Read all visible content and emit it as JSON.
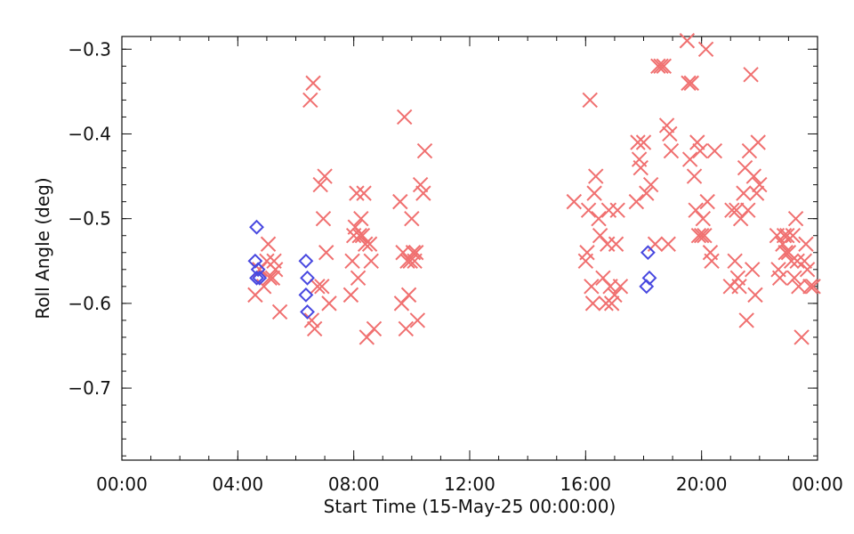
{
  "chart_data": {
    "type": "scatter",
    "title": "",
    "xlabel": "Start Time (15-May-25 00:00:00)",
    "ylabel": "Roll Angle (deg)",
    "x_unit": "hours",
    "xlim": [
      0,
      24
    ],
    "ylim": [
      -0.785,
      -0.285
    ],
    "x_ticks": [
      {
        "value": 0,
        "label": "00:00"
      },
      {
        "value": 4,
        "label": "04:00"
      },
      {
        "value": 8,
        "label": "08:00"
      },
      {
        "value": 12,
        "label": "12:00"
      },
      {
        "value": 16,
        "label": "16:00"
      },
      {
        "value": 20,
        "label": "20:00"
      },
      {
        "value": 24,
        "label": "00:00"
      }
    ],
    "y_ticks": [
      {
        "value": -0.3,
        "label": "−0.3"
      },
      {
        "value": -0.4,
        "label": "−0.4"
      },
      {
        "value": -0.5,
        "label": "−0.5"
      },
      {
        "value": -0.6,
        "label": "−0.6"
      },
      {
        "value": -0.7,
        "label": "−0.7"
      }
    ],
    "x_minor_step": 1,
    "y_minor_step": 0.02,
    "grid": false,
    "series": [
      {
        "marker": "x",
        "color": "#f07070",
        "points": [
          [
            4.6,
            -0.59
          ],
          [
            4.75,
            -0.56
          ],
          [
            4.9,
            -0.58
          ],
          [
            5.0,
            -0.55
          ],
          [
            5.05,
            -0.53
          ],
          [
            5.1,
            -0.57
          ],
          [
            5.2,
            -0.57
          ],
          [
            5.25,
            -0.55
          ],
          [
            5.3,
            -0.56
          ],
          [
            5.45,
            -0.61
          ],
          [
            6.5,
            -0.36
          ],
          [
            6.55,
            -0.62
          ],
          [
            6.6,
            -0.34
          ],
          [
            6.65,
            -0.63
          ],
          [
            6.75,
            -0.58
          ],
          [
            6.85,
            -0.46
          ],
          [
            6.9,
            -0.58
          ],
          [
            6.95,
            -0.5
          ],
          [
            7.0,
            -0.45
          ],
          [
            7.05,
            -0.54
          ],
          [
            7.15,
            -0.6
          ],
          [
            7.9,
            -0.59
          ],
          [
            7.95,
            -0.55
          ],
          [
            8.0,
            -0.52
          ],
          [
            8.05,
            -0.51
          ],
          [
            8.1,
            -0.47
          ],
          [
            8.15,
            -0.57
          ],
          [
            8.2,
            -0.52
          ],
          [
            8.25,
            -0.5
          ],
          [
            8.3,
            -0.52
          ],
          [
            8.35,
            -0.47
          ],
          [
            8.4,
            -0.53
          ],
          [
            8.45,
            -0.64
          ],
          [
            8.55,
            -0.53
          ],
          [
            8.6,
            -0.55
          ],
          [
            8.7,
            -0.63
          ],
          [
            9.6,
            -0.48
          ],
          [
            9.65,
            -0.6
          ],
          [
            9.7,
            -0.54
          ],
          [
            9.75,
            -0.38
          ],
          [
            9.8,
            -0.63
          ],
          [
            9.85,
            -0.55
          ],
          [
            9.9,
            -0.59
          ],
          [
            9.95,
            -0.55
          ],
          [
            10.0,
            -0.5
          ],
          [
            10.05,
            -0.54
          ],
          [
            10.1,
            -0.55
          ],
          [
            10.15,
            -0.54
          ],
          [
            10.2,
            -0.62
          ],
          [
            10.3,
            -0.46
          ],
          [
            10.4,
            -0.47
          ],
          [
            10.45,
            -0.42
          ],
          [
            15.6,
            -0.48
          ],
          [
            16.0,
            -0.55
          ],
          [
            16.05,
            -0.54
          ],
          [
            16.1,
            -0.49
          ],
          [
            16.15,
            -0.36
          ],
          [
            16.2,
            -0.58
          ],
          [
            16.25,
            -0.6
          ],
          [
            16.3,
            -0.47
          ],
          [
            16.35,
            -0.45
          ],
          [
            16.45,
            -0.5
          ],
          [
            16.5,
            -0.52
          ],
          [
            16.6,
            -0.57
          ],
          [
            16.7,
            -0.6
          ],
          [
            16.75,
            -0.53
          ],
          [
            16.8,
            -0.49
          ],
          [
            16.85,
            -0.58
          ],
          [
            16.9,
            -0.6
          ],
          [
            17.0,
            -0.59
          ],
          [
            17.05,
            -0.53
          ],
          [
            17.1,
            -0.49
          ],
          [
            17.2,
            -0.58
          ],
          [
            17.75,
            -0.48
          ],
          [
            17.8,
            -0.41
          ],
          [
            17.85,
            -0.43
          ],
          [
            17.9,
            -0.44
          ],
          [
            18.0,
            -0.41
          ],
          [
            18.1,
            -0.47
          ],
          [
            18.25,
            -0.46
          ],
          [
            18.4,
            -0.53
          ],
          [
            18.5,
            -0.32
          ],
          [
            18.6,
            -0.32
          ],
          [
            18.7,
            -0.32
          ],
          [
            18.8,
            -0.39
          ],
          [
            18.85,
            -0.53
          ],
          [
            18.9,
            -0.4
          ],
          [
            18.95,
            -0.42
          ],
          [
            19.5,
            -0.29
          ],
          [
            19.55,
            -0.34
          ],
          [
            19.6,
            -0.43
          ],
          [
            19.65,
            -0.34
          ],
          [
            19.75,
            -0.45
          ],
          [
            19.8,
            -0.49
          ],
          [
            19.85,
            -0.41
          ],
          [
            19.9,
            -0.52
          ],
          [
            19.95,
            -0.42
          ],
          [
            20.0,
            -0.52
          ],
          [
            20.05,
            -0.5
          ],
          [
            20.1,
            -0.52
          ],
          [
            20.15,
            -0.3
          ],
          [
            20.2,
            -0.48
          ],
          [
            20.3,
            -0.54
          ],
          [
            20.35,
            -0.55
          ],
          [
            20.45,
            -0.42
          ],
          [
            21.0,
            -0.58
          ],
          [
            21.05,
            -0.49
          ],
          [
            21.15,
            -0.55
          ],
          [
            21.2,
            -0.49
          ],
          [
            21.25,
            -0.57
          ],
          [
            21.3,
            -0.58
          ],
          [
            21.35,
            -0.5
          ],
          [
            21.45,
            -0.47
          ],
          [
            21.5,
            -0.44
          ],
          [
            21.55,
            -0.62
          ],
          [
            21.6,
            -0.49
          ],
          [
            21.65,
            -0.42
          ],
          [
            21.7,
            -0.33
          ],
          [
            21.75,
            -0.56
          ],
          [
            21.8,
            -0.45
          ],
          [
            21.85,
            -0.59
          ],
          [
            21.9,
            -0.47
          ],
          [
            21.95,
            -0.41
          ],
          [
            22.0,
            -0.46
          ],
          [
            22.6,
            -0.52
          ],
          [
            22.65,
            -0.56
          ],
          [
            22.7,
            -0.57
          ],
          [
            22.8,
            -0.53
          ],
          [
            22.85,
            -0.52
          ],
          [
            22.9,
            -0.54
          ],
          [
            22.95,
            -0.52
          ],
          [
            23.0,
            -0.54
          ],
          [
            23.1,
            -0.55
          ],
          [
            23.15,
            -0.52
          ],
          [
            23.2,
            -0.57
          ],
          [
            23.25,
            -0.5
          ],
          [
            23.3,
            -0.55
          ],
          [
            23.35,
            -0.58
          ],
          [
            23.45,
            -0.64
          ],
          [
            23.55,
            -0.55
          ],
          [
            23.6,
            -0.53
          ],
          [
            23.65,
            -0.56
          ],
          [
            23.75,
            -0.58
          ],
          [
            23.85,
            -0.58
          ]
        ]
      },
      {
        "marker": "diamond",
        "color": "#4848e0",
        "points": [
          [
            4.65,
            -0.51
          ],
          [
            4.6,
            -0.55
          ],
          [
            4.7,
            -0.56
          ],
          [
            4.65,
            -0.57
          ],
          [
            4.75,
            -0.57
          ],
          [
            6.35,
            -0.55
          ],
          [
            6.4,
            -0.57
          ],
          [
            6.35,
            -0.59
          ],
          [
            6.4,
            -0.61
          ],
          [
            18.15,
            -0.54
          ],
          [
            18.1,
            -0.58
          ],
          [
            18.2,
            -0.57
          ]
        ]
      }
    ]
  }
}
